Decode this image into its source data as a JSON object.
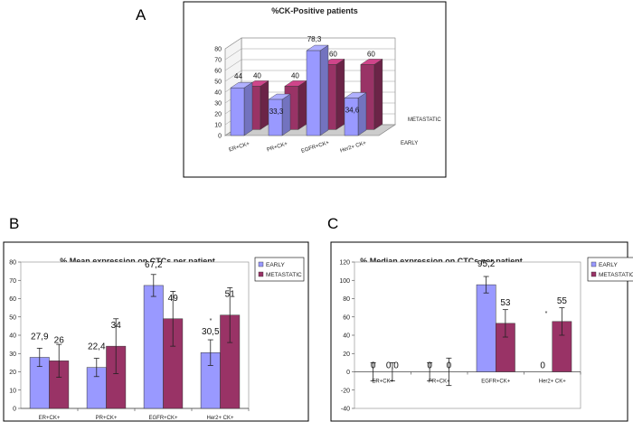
{
  "panel_labels": {
    "a": "A",
    "b": "B",
    "c": "C"
  },
  "colors": {
    "early": "#9999ff",
    "metastatic": "#993366",
    "border": "#000000",
    "grid": "#999999"
  },
  "chart_data": [
    {
      "id": "A",
      "type": "bar",
      "title": "%CK-Positive patients",
      "categories": [
        "ER+CK+",
        "PR+CK+",
        "EGFR+CK+",
        "Her2+ CK+"
      ],
      "series": [
        {
          "name": "EARLY",
          "values": [
            44,
            33.3,
            78.3,
            34.6
          ],
          "labels": [
            "44",
            "33,3",
            "78,3",
            "34,6"
          ]
        },
        {
          "name": "METASTATIC",
          "values": [
            40,
            40,
            60,
            60
          ],
          "labels": [
            "40",
            "40",
            "60",
            "60"
          ]
        }
      ],
      "ylim": [
        0,
        80
      ],
      "yticks": [
        0,
        10,
        20,
        30,
        40,
        50,
        60,
        70,
        80
      ],
      "depth_labels": [
        "METASTATIC",
        "EARLY"
      ]
    },
    {
      "id": "B",
      "type": "bar",
      "title": "% Mean expression on CTCs per patient",
      "categories": [
        "ER+CK+",
        "PR+CK+",
        "EGFR+CK+",
        "Her2+ CK+"
      ],
      "series": [
        {
          "name": "EARLY",
          "values": [
            27.9,
            22.4,
            67.2,
            30.5
          ],
          "labels": [
            "27,9",
            "22,4",
            "67,2",
            "30,5"
          ],
          "err": [
            5,
            5,
            6,
            7
          ]
        },
        {
          "name": "METASTATIC",
          "values": [
            26,
            34,
            49,
            51
          ],
          "labels": [
            "26",
            "34",
            "49",
            "51"
          ],
          "err": [
            9,
            15,
            15,
            15
          ]
        }
      ],
      "ylim": [
        0,
        80
      ],
      "yticks": [
        0,
        10,
        20,
        30,
        40,
        50,
        60,
        70,
        80
      ],
      "annotation": "*",
      "legend": [
        "EARLY",
        "METASTATIC"
      ]
    },
    {
      "id": "C",
      "type": "bar",
      "title": "% Median expression on CTCs per patient",
      "categories": [
        "ER+CK+",
        "PR+CK+",
        "EGFR+CK+",
        "Her2+ CK+"
      ],
      "series": [
        {
          "name": "EARLY",
          "values": [
            0,
            0,
            95.2,
            0
          ],
          "labels": [
            "0",
            "0",
            "95,2",
            "0"
          ],
          "err": [
            10,
            10,
            9,
            0
          ]
        },
        {
          "name": "METASTATIC",
          "values": [
            0,
            0,
            53,
            55
          ],
          "labels": [
            "0,0",
            "0",
            "53",
            "55"
          ],
          "err": [
            10,
            15,
            15,
            15
          ]
        }
      ],
      "ylim": [
        -40,
        120
      ],
      "yticks": [
        -40,
        -20,
        0,
        20,
        40,
        60,
        80,
        100,
        120
      ],
      "annotation": "*",
      "legend": [
        "EARLY",
        "METASTATIC"
      ]
    }
  ]
}
